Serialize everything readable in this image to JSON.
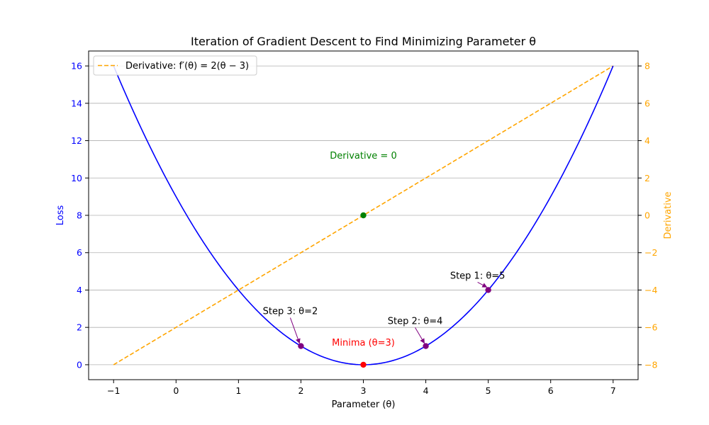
{
  "chart_data": {
    "type": "line",
    "title": "Iteration of Gradient Descent to Find Minimizing Parameter θ",
    "xlabel": "Parameter (θ)",
    "ylabel_left": "Loss",
    "ylabel_right": "Derivative",
    "xlim": [
      -1.4,
      7.4
    ],
    "ylim_left": [
      -0.8,
      16.8
    ],
    "ylim_right": [
      -8.8,
      8.8
    ],
    "x_ticks": [
      -1,
      0,
      1,
      2,
      3,
      4,
      5,
      6,
      7
    ],
    "y_ticks_left": [
      0,
      2,
      4,
      6,
      8,
      10,
      12,
      14,
      16
    ],
    "y_ticks_right": [
      -8,
      -6,
      -4,
      -2,
      0,
      2,
      4,
      6,
      8
    ],
    "y_tick_labels_right": [
      "−8",
      "−6",
      "−4",
      "−2",
      "0",
      "2",
      "4",
      "6",
      "8"
    ],
    "x_tick_labels": [
      "−1",
      "0",
      "1",
      "2",
      "3",
      "4",
      "5",
      "6",
      "7"
    ],
    "grid": "horizontal",
    "legend_position": "top-left",
    "legend": [
      {
        "label": "Derivative: f′(θ) = 2(θ − 3)",
        "color": "#ffa500",
        "style": "dashed"
      }
    ],
    "series": [
      {
        "axis": "left",
        "color": "#0000ff",
        "style": "solid",
        "function": "(θ-3)^2",
        "x_range": [
          -1,
          7
        ]
      },
      {
        "axis": "right",
        "color": "#ffa500",
        "style": "dashed",
        "function": "2(θ-3)",
        "x_range": [
          -1,
          7
        ]
      }
    ],
    "points": [
      {
        "x": 5,
        "y": 4,
        "axis": "left",
        "color": "#800080",
        "label": "Step 1: θ=5",
        "label_color": "#000000",
        "arrow": true
      },
      {
        "x": 4,
        "y": 1,
        "axis": "left",
        "color": "#800080",
        "label": "Step 2: θ=4",
        "label_color": "#000000",
        "arrow": true
      },
      {
        "x": 2,
        "y": 1,
        "axis": "left",
        "color": "#800080",
        "label": "Step 3: θ=2",
        "label_color": "#000000",
        "arrow": true
      },
      {
        "x": 3,
        "y": 0,
        "axis": "left",
        "color": "#ff0000",
        "label": "Minima (θ=3)",
        "label_color": "#ff0000",
        "arrow": false
      },
      {
        "x": 3,
        "y": 0,
        "axis": "right",
        "color": "#008000",
        "label": "Derivative = 0",
        "label_color": "#008000",
        "arrow": false
      }
    ],
    "colors": {
      "loss_axis": "#0000ff",
      "derivative_axis": "#ffa500",
      "grid": "#b0b0b0"
    }
  }
}
